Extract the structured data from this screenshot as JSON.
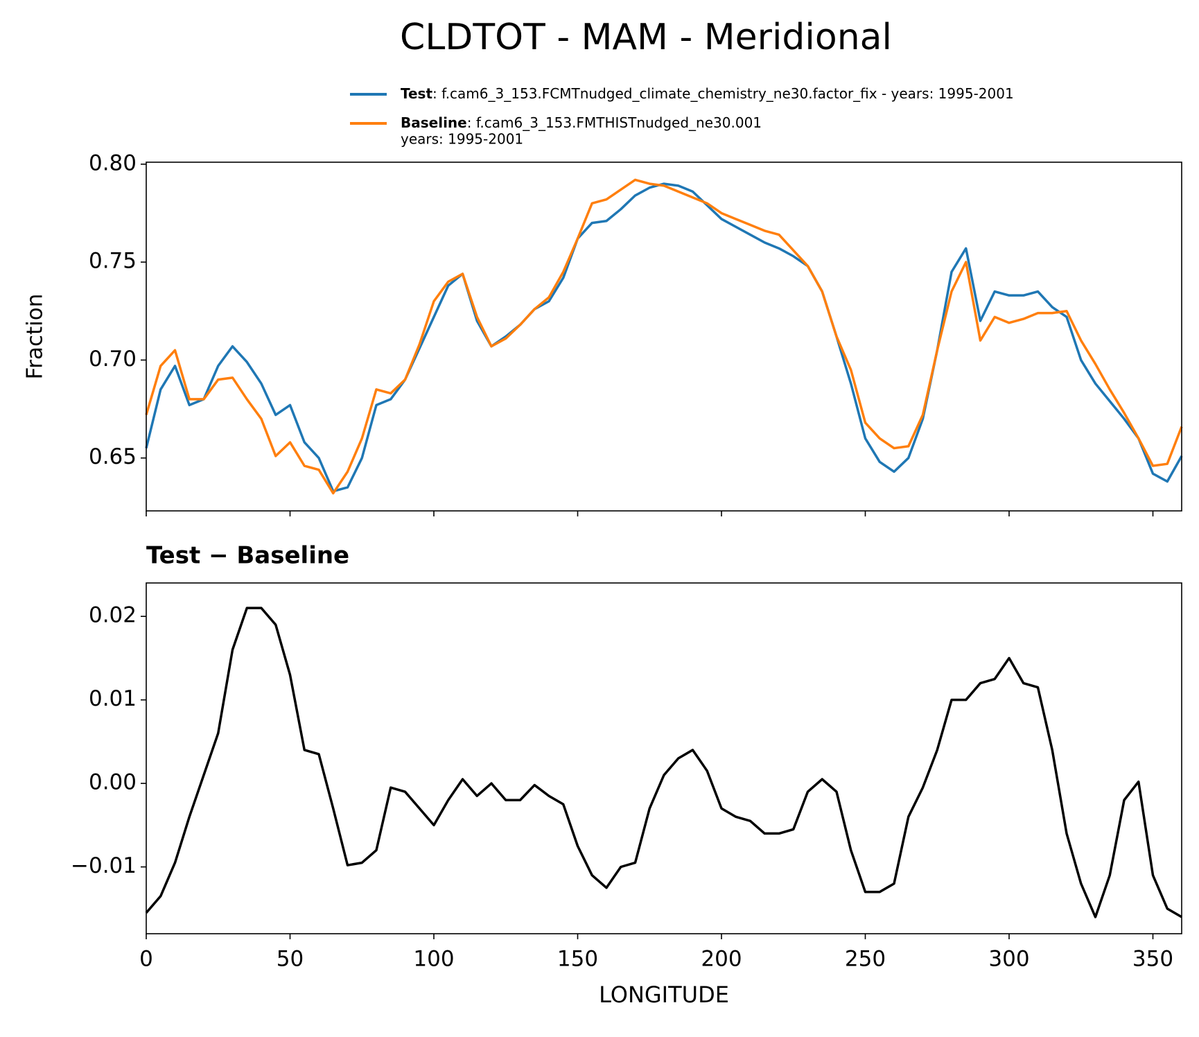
{
  "title": "CLDTOT - MAM - Meridional",
  "chart_data": [
    {
      "type": "line",
      "ylabel": "Fraction",
      "x": [
        0,
        5,
        10,
        15,
        20,
        25,
        30,
        35,
        40,
        45,
        50,
        55,
        60,
        65,
        70,
        75,
        80,
        85,
        90,
        95,
        100,
        105,
        110,
        115,
        120,
        125,
        130,
        135,
        140,
        145,
        150,
        155,
        160,
        165,
        170,
        175,
        180,
        185,
        190,
        195,
        200,
        205,
        210,
        215,
        220,
        225,
        230,
        235,
        240,
        245,
        250,
        255,
        260,
        265,
        270,
        275,
        280,
        285,
        290,
        295,
        300,
        305,
        310,
        315,
        320,
        325,
        330,
        335,
        340,
        345,
        350,
        355,
        360
      ],
      "series": [
        {
          "name": "Test",
          "legend_lines": [
            ": f.cam6_3_153.FCMTnudged_climate_chemistry_ne30.factor_fix - years: 1995-2001"
          ],
          "color": "#1f77b4",
          "values": [
            0.655,
            0.685,
            0.697,
            0.677,
            0.68,
            0.697,
            0.707,
            0.699,
            0.688,
            0.672,
            0.677,
            0.658,
            0.65,
            0.633,
            0.635,
            0.65,
            0.677,
            0.68,
            0.69,
            0.706,
            0.722,
            0.738,
            0.744,
            0.72,
            0.707,
            0.712,
            0.718,
            0.726,
            0.73,
            0.742,
            0.762,
            0.77,
            0.771,
            0.777,
            0.784,
            0.788,
            0.79,
            0.789,
            0.786,
            0.779,
            0.772,
            0.768,
            0.764,
            0.76,
            0.757,
            0.753,
            0.748,
            0.735,
            0.712,
            0.688,
            0.66,
            0.648,
            0.643,
            0.65,
            0.67,
            0.705,
            0.745,
            0.757,
            0.72,
            0.735,
            0.733,
            0.733,
            0.735,
            0.727,
            0.722,
            0.7,
            0.688,
            0.679,
            0.67,
            0.66,
            0.642,
            0.638,
            0.651
          ]
        },
        {
          "name": "Baseline",
          "legend_lines": [
            ": f.cam6_3_153.FMTHISTnudged_ne30.001",
            "years: 1995-2001"
          ],
          "color": "#ff7f0e",
          "values": [
            0.672,
            0.697,
            0.705,
            0.68,
            0.68,
            0.69,
            0.691,
            0.68,
            0.67,
            0.651,
            0.658,
            0.646,
            0.644,
            0.632,
            0.643,
            0.66,
            0.685,
            0.683,
            0.69,
            0.708,
            0.73,
            0.74,
            0.744,
            0.722,
            0.707,
            0.711,
            0.718,
            0.726,
            0.732,
            0.745,
            0.762,
            0.78,
            0.782,
            0.787,
            0.792,
            0.79,
            0.789,
            0.786,
            0.783,
            0.78,
            0.775,
            0.772,
            0.769,
            0.766,
            0.764,
            0.756,
            0.748,
            0.735,
            0.712,
            0.695,
            0.668,
            0.66,
            0.655,
            0.656,
            0.672,
            0.705,
            0.735,
            0.75,
            0.71,
            0.722,
            0.719,
            0.721,
            0.724,
            0.724,
            0.725,
            0.71,
            0.698,
            0.685,
            0.673,
            0.66,
            0.646,
            0.647,
            0.666
          ]
        }
      ],
      "xlim": [
        0,
        360
      ],
      "xticks": [
        0,
        50,
        100,
        150,
        200,
        250,
        300,
        350
      ],
      "ylim": [
        0.623,
        0.801
      ],
      "yticks": [
        0.65,
        {
          "value": 0.7,
          "label": "0.70"
        },
        0.75,
        {
          "value": 0.8,
          "label": "0.80"
        }
      ]
    },
    {
      "type": "line",
      "title": "Test − Baseline",
      "xlabel": "LONGITUDE",
      "x": [
        0,
        5,
        10,
        15,
        20,
        25,
        30,
        35,
        40,
        45,
        50,
        55,
        60,
        65,
        70,
        75,
        80,
        85,
        90,
        95,
        100,
        105,
        110,
        115,
        120,
        125,
        130,
        135,
        140,
        145,
        150,
        155,
        160,
        165,
        170,
        175,
        180,
        185,
        190,
        195,
        200,
        205,
        210,
        215,
        220,
        225,
        230,
        235,
        240,
        245,
        250,
        255,
        260,
        265,
        270,
        275,
        280,
        285,
        290,
        295,
        300,
        305,
        310,
        315,
        320,
        325,
        330,
        335,
        340,
        345,
        350,
        355,
        360
      ],
      "series": [
        {
          "color": "#000000",
          "values": [
            -0.0155,
            -0.0135,
            -0.0095,
            -0.004,
            0.001,
            0.006,
            0.016,
            0.021,
            0.021,
            0.019,
            0.013,
            0.004,
            0.0035,
            -0.003,
            -0.0098,
            -0.0095,
            -0.008,
            -0.0005,
            -0.001,
            -0.003,
            -0.005,
            -0.002,
            0.0005,
            -0.0015,
            0.0,
            -0.002,
            -0.002,
            -0.0002,
            -0.0015,
            -0.0025,
            -0.0075,
            -0.011,
            -0.0125,
            -0.01,
            -0.0095,
            -0.003,
            0.001,
            0.003,
            0.004,
            0.0015,
            -0.003,
            -0.004,
            -0.0045,
            -0.006,
            -0.006,
            -0.0055,
            -0.001,
            0.0005,
            -0.001,
            -0.008,
            -0.013,
            -0.013,
            -0.012,
            -0.004,
            -0.0005,
            0.004,
            0.01,
            0.01,
            0.012,
            0.0125,
            0.015,
            0.012,
            0.0115,
            0.004,
            -0.006,
            -0.012,
            -0.016,
            -0.011,
            -0.002,
            0.0002,
            -0.011,
            -0.015,
            -0.016
          ]
        }
      ],
      "xlim": [
        0,
        360
      ],
      "xticks": [
        0,
        50,
        100,
        150,
        200,
        250,
        300,
        350
      ],
      "ylim": [
        -0.018,
        0.024
      ],
      "yticks": [
        {
          "value": -0.01,
          "label": "−0.01"
        },
        {
          "value": 0,
          "label": "0.00"
        },
        0.01,
        0.02
      ]
    }
  ]
}
